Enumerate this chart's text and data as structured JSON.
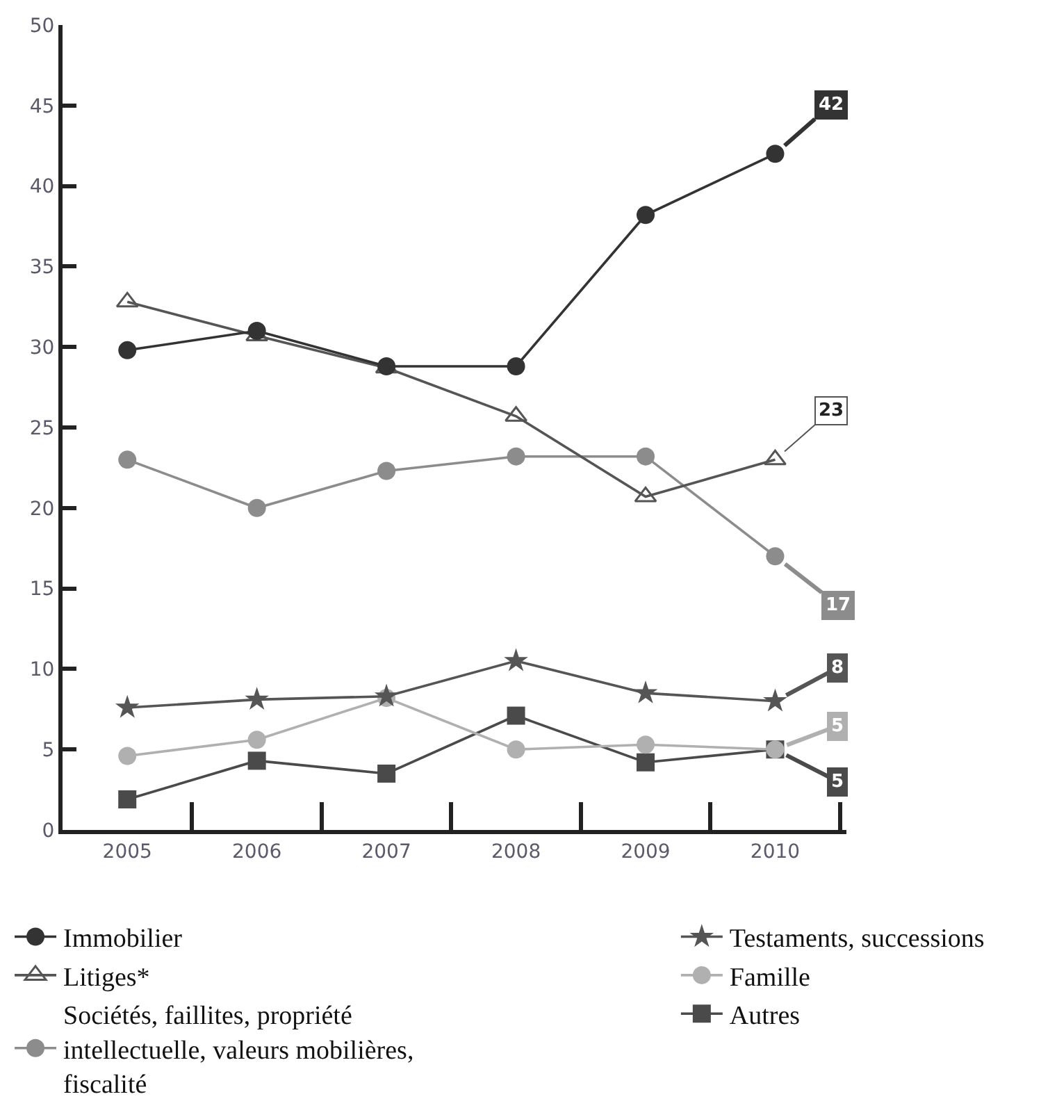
{
  "chart_data": {
    "type": "line",
    "categories": [
      "2005",
      "2006",
      "2007",
      "2008",
      "2009",
      "2010"
    ],
    "ylim": [
      0,
      50
    ],
    "yticks": [
      0,
      5,
      10,
      15,
      20,
      25,
      30,
      35,
      40,
      45,
      50
    ],
    "legend": "bottom",
    "line_style": "solid",
    "series": [
      {
        "name": "Immobilier",
        "color": "#333333",
        "marker": "circle",
        "values": [
          29.8,
          31,
          28.8,
          28.8,
          38.2,
          42
        ],
        "value_labels": [
          null,
          null,
          null,
          null,
          null,
          "42"
        ]
      },
      {
        "name": "Litiges*",
        "color": "#555555",
        "marker": "triangle",
        "values": [
          32.8,
          30.7,
          28.7,
          25.7,
          20.7,
          23
        ],
        "value_labels": [
          null,
          null,
          null,
          null,
          null,
          "23"
        ]
      },
      {
        "name": "Sociétés, faillites, propriété intellectuelle, valeurs mobilières, fiscalité",
        "color": "#8c8c8c",
        "marker": "circle",
        "values": [
          23,
          20,
          22.3,
          23.2,
          23.2,
          17
        ],
        "value_labels": [
          null,
          null,
          null,
          null,
          null,
          "17"
        ]
      },
      {
        "name": "Testaments, successions",
        "color": "#555555",
        "marker": "star",
        "values": [
          7.6,
          8.1,
          8.3,
          10.5,
          8.5,
          8
        ],
        "value_labels": [
          null,
          null,
          null,
          null,
          null,
          "8"
        ]
      },
      {
        "name": "Famille",
        "color": "#b0b0b0",
        "marker": "circle",
        "values": [
          4.6,
          5.6,
          8.2,
          5,
          5.3,
          5
        ],
        "value_labels": [
          null,
          null,
          null,
          null,
          null,
          "5"
        ]
      },
      {
        "name": "Autres",
        "color": "#4a4a4a",
        "marker": "square",
        "values": [
          1.9,
          4.3,
          3.5,
          7.1,
          4.2,
          5
        ],
        "value_labels": [
          null,
          null,
          null,
          null,
          null,
          "5"
        ]
      }
    ]
  }
}
